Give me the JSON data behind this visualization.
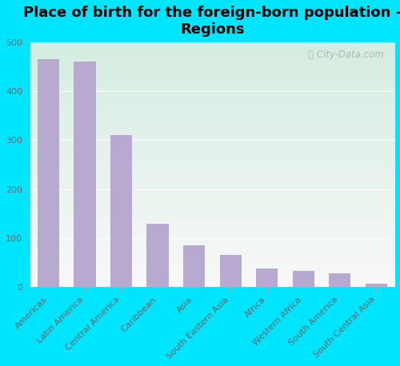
{
  "title": "Place of birth for the foreign-born population -\nRegions",
  "categories": [
    "Americas",
    "Latin America",
    "Central America",
    "Caribbean",
    "Asia",
    "South Eastern Asia",
    "Africa",
    "Western Africa",
    "South America",
    "South Central Asia"
  ],
  "values": [
    465,
    460,
    310,
    130,
    85,
    65,
    37,
    33,
    28,
    7
  ],
  "bar_color": "#b8a9d0",
  "background_outer": "#00e5ff",
  "ylim": [
    0,
    500
  ],
  "yticks": [
    0,
    100,
    200,
    300,
    400,
    500
  ],
  "watermark": "ⓘ City-Data.com",
  "title_fontsize": 13,
  "tick_fontsize": 8,
  "grid_color": "#cccccc",
  "gradient_top_color": "#d4ede1",
  "gradient_bottom_color": "#f8f8f8"
}
